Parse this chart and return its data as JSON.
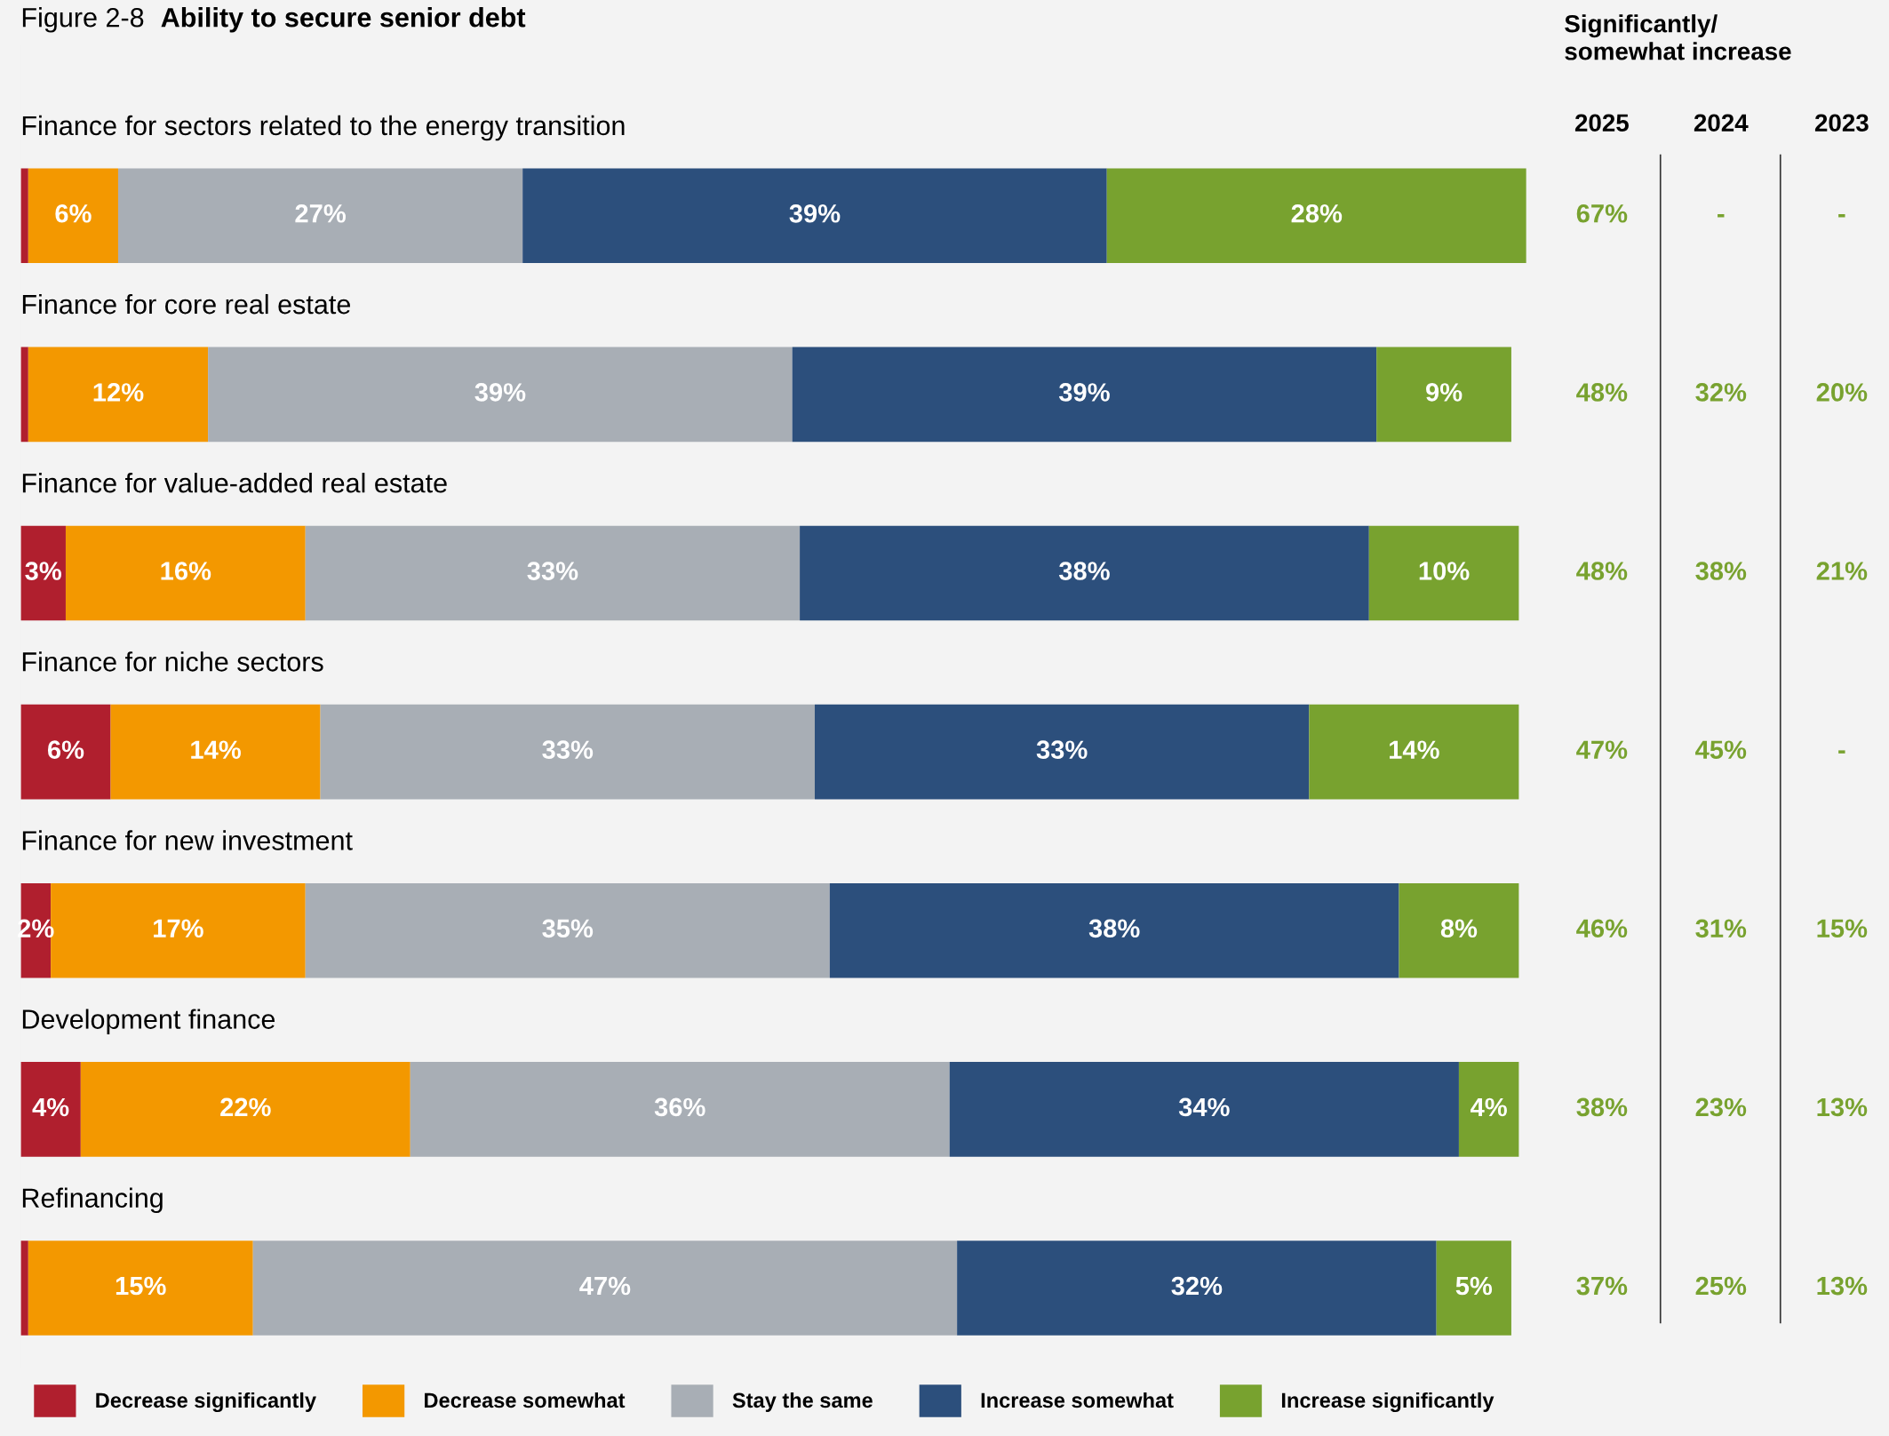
{
  "chart_data": {
    "type": "bar",
    "orientation": "horizontal",
    "stacked": true,
    "title": "Figure 2-8",
    "subtitle": "Ability to secure senior debt",
    "categories": [
      "Finance for sectors related to the energy transition",
      "Finance for core real estate",
      "Finance for value-added real estate",
      "Finance for niche sectors",
      "Finance for new investment",
      "Development finance",
      "Refinancing"
    ],
    "series": [
      {
        "name": "Decrease significantly",
        "color": "#b01f2e",
        "values": [
          0.5,
          0.5,
          3,
          6,
          2,
          4,
          0.5
        ],
        "value_labels": [
          null,
          null,
          "3%",
          "6%",
          "2%",
          "4%",
          null
        ]
      },
      {
        "name": "Decrease somewhat",
        "color": "#f39800",
        "values": [
          6,
          12,
          16,
          14,
          17,
          22,
          15
        ],
        "value_labels": [
          "6%",
          "12%",
          "16%",
          "14%",
          "17%",
          "22%",
          "15%"
        ]
      },
      {
        "name": "Stay the same",
        "color": "#a8aeb5",
        "values": [
          27,
          39,
          33,
          33,
          35,
          36,
          47
        ],
        "value_labels": [
          "27%",
          "39%",
          "33%",
          "33%",
          "35%",
          "36%",
          "47%"
        ]
      },
      {
        "name": "Increase somewhat",
        "color": "#2c4f7c",
        "values": [
          39,
          39,
          38,
          33,
          38,
          34,
          32
        ],
        "value_labels": [
          "39%",
          "39%",
          "38%",
          "33%",
          "38%",
          "34%",
          "32%"
        ]
      },
      {
        "name": "Increase significantly",
        "color": "#78a22f",
        "values": [
          28,
          9,
          10,
          14,
          8,
          4,
          5
        ],
        "value_labels": [
          "28%",
          "9%",
          "10%",
          "14%",
          "8%",
          "4%",
          "5%"
        ]
      }
    ],
    "annotations": [
      "Significantly/\nsomewhat increase",
      "2025",
      "2024",
      "2023",
      "67%",
      "-",
      "-",
      "48%",
      "32%",
      "20%",
      "48%",
      "38%",
      "21%",
      "47%",
      "45%",
      "-",
      "46%",
      "31%",
      "15%",
      "38%",
      "23%",
      "13%",
      "37%",
      "25%",
      "13%"
    ],
    "legend": "bottom"
  }
}
